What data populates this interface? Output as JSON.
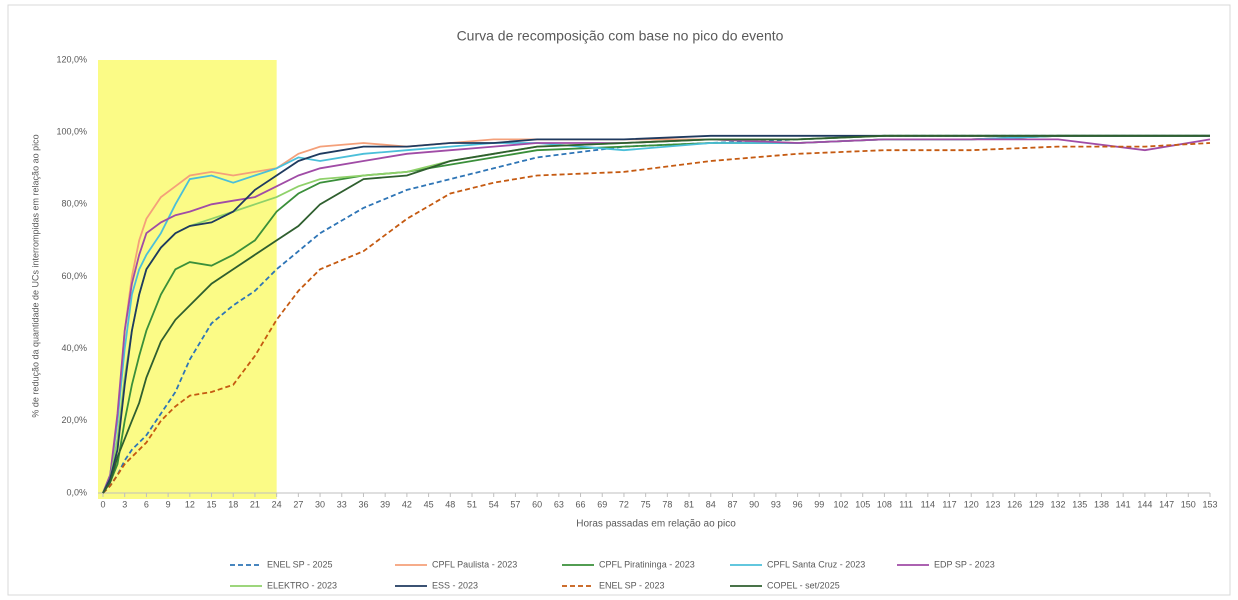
{
  "chart_data": {
    "type": "line",
    "title": "Curva de recomposição com base no pico do evento",
    "x_label": "Horas passadas em relação ao pico",
    "y_label": "% de redução da quantidade de UCs interrompidas em relação ao pico",
    "x": [
      0,
      1,
      2,
      3,
      4,
      5,
      6,
      8,
      10,
      12,
      15,
      18,
      21,
      24,
      27,
      30,
      36,
      42,
      48,
      54,
      60,
      72,
      84,
      96,
      108,
      120,
      132,
      144,
      153
    ],
    "xlim": [
      0,
      153
    ],
    "xticks": [
      0,
      3,
      6,
      9,
      12,
      15,
      18,
      21,
      24,
      27,
      30,
      33,
      36,
      39,
      42,
      45,
      48,
      51,
      54,
      57,
      60,
      63,
      66,
      69,
      72,
      75,
      78,
      81,
      84,
      87,
      90,
      93,
      96,
      99,
      102,
      105,
      108,
      111,
      114,
      117,
      120,
      123,
      126,
      129,
      132,
      135,
      138,
      141,
      144,
      147,
      150,
      153
    ],
    "ylim": [
      0,
      120
    ],
    "yticks": [
      {
        "value": 0,
        "label": "0,0%"
      },
      {
        "value": 20,
        "label": "20,0%"
      },
      {
        "value": 40,
        "label": "40,0%"
      },
      {
        "value": 60,
        "label": "60,0%"
      },
      {
        "value": 80,
        "label": "80,0%"
      },
      {
        "value": 100,
        "label": "100,0%"
      },
      {
        "value": 120,
        "label": "120,0%"
      }
    ],
    "highlight": {
      "xlim": [
        0,
        24
      ],
      "color": "#fbfb86"
    },
    "legend": "bottom",
    "series": [
      {
        "name": "ENEL SP - 2025",
        "color": "#2e75b6",
        "dashed": true,
        "values": [
          0,
          2,
          5,
          9,
          12,
          14,
          16,
          22,
          28,
          37,
          47,
          52,
          56,
          62,
          67,
          72,
          79,
          84,
          87,
          90,
          93,
          96,
          97,
          98,
          99,
          99,
          99,
          99,
          99
        ]
      },
      {
        "name": "CPFL Paulista - 2023",
        "color": "#f4a07a",
        "dashed": false,
        "values": [
          0,
          5,
          20,
          45,
          60,
          70,
          76,
          82,
          85,
          88,
          89,
          88,
          89,
          90,
          94,
          96,
          97,
          96,
          97,
          98,
          98,
          98,
          98,
          97,
          98,
          98,
          99,
          99,
          99
        ]
      },
      {
        "name": "CPFL Piratininga - 2023",
        "color": "#3a8f3a",
        "dashed": false,
        "values": [
          0,
          3,
          8,
          20,
          30,
          38,
          45,
          55,
          62,
          64,
          63,
          66,
          70,
          78,
          83,
          86,
          88,
          89,
          91,
          93,
          95,
          96,
          97,
          97,
          98,
          98,
          99,
          99,
          99
        ]
      },
      {
        "name": "CPFL Santa Cruz - 2023",
        "color": "#4bbfd9",
        "dashed": false,
        "values": [
          0,
          5,
          20,
          40,
          55,
          62,
          66,
          72,
          80,
          87,
          88,
          86,
          88,
          90,
          93,
          92,
          94,
          95,
          96,
          97,
          97,
          95,
          97,
          97,
          98,
          98,
          99,
          99,
          99
        ]
      },
      {
        "name": "EDP SP - 2023",
        "color": "#a04ca6",
        "dashed": false,
        "values": [
          0,
          5,
          22,
          45,
          58,
          66,
          72,
          75,
          77,
          78,
          80,
          81,
          82,
          85,
          88,
          90,
          92,
          94,
          95,
          96,
          97,
          97,
          98,
          97,
          98,
          98,
          98,
          95,
          98
        ]
      },
      {
        "name": "ELEKTRO - 2023",
        "color": "#8fd16a",
        "dashed": false,
        "values": [
          0,
          4,
          15,
          32,
          45,
          55,
          62,
          68,
          72,
          74,
          76,
          78,
          80,
          82,
          85,
          87,
          88,
          89,
          92,
          94,
          96,
          97,
          98,
          98,
          99,
          99,
          99,
          99,
          99
        ]
      },
      {
        "name": "ESS - 2023",
        "color": "#1f3a5f",
        "dashed": false,
        "values": [
          0,
          4,
          12,
          30,
          45,
          55,
          62,
          68,
          72,
          74,
          75,
          78,
          84,
          88,
          92,
          94,
          96,
          96,
          97,
          97,
          98,
          98,
          99,
          99,
          99,
          99,
          99,
          99,
          99
        ]
      },
      {
        "name": "ENEL SP - 2023",
        "color": "#c55a11",
        "dashed": true,
        "values": [
          0,
          2,
          5,
          8,
          10,
          12,
          14,
          20,
          24,
          27,
          28,
          30,
          38,
          48,
          56,
          62,
          67,
          76,
          83,
          86,
          88,
          89,
          92,
          94,
          95,
          95,
          96,
          96,
          97
        ]
      },
      {
        "name": "COPEL - set/2025",
        "color": "#2f5f2f",
        "dashed": false,
        "values": [
          0,
          3,
          10,
          15,
          20,
          25,
          32,
          42,
          48,
          52,
          58,
          62,
          66,
          70,
          74,
          80,
          87,
          88,
          92,
          94,
          96,
          97,
          98,
          98,
          99,
          99,
          99,
          99,
          99
        ]
      }
    ]
  }
}
